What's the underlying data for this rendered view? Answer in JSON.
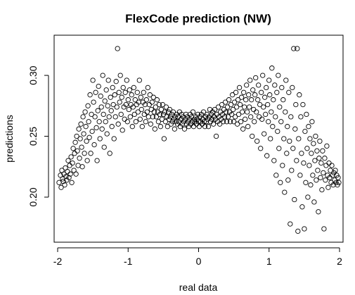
{
  "chart_data": {
    "type": "scatter",
    "title": "FlexCode prediction (NW)",
    "xlabel": "real data",
    "ylabel": "predictions",
    "xlim": [
      -2.05,
      2.05
    ],
    "ylim": [
      0.163,
      0.333
    ],
    "x_ticks": [
      -2,
      -1,
      0,
      1,
      2
    ],
    "x_tick_labels": [
      "-2",
      "-1",
      "0",
      "1",
      "2"
    ],
    "y_ticks": [
      0.2,
      0.25,
      0.3
    ],
    "y_tick_labels": [
      "0.20",
      "0.25",
      "0.30"
    ],
    "grid": false,
    "marker": "open-circle",
    "points": [
      [
        -1.98,
        0.212
      ],
      [
        -1.96,
        0.218
      ],
      [
        -1.95,
        0.208
      ],
      [
        -1.94,
        0.222
      ],
      [
        -1.93,
        0.215
      ],
      [
        -1.92,
        0.213
      ],
      [
        -1.91,
        0.219
      ],
      [
        -1.9,
        0.21
      ],
      [
        -1.89,
        0.224
      ],
      [
        -1.88,
        0.217
      ],
      [
        -1.87,
        0.214
      ],
      [
        -1.86,
        0.221
      ],
      [
        -1.85,
        0.23
      ],
      [
        -1.84,
        0.216
      ],
      [
        -1.83,
        0.226
      ],
      [
        -1.82,
        0.219
      ],
      [
        -1.81,
        0.233
      ],
      [
        -1.8,
        0.212
      ],
      [
        -1.79,
        0.228
      ],
      [
        -1.78,
        0.24
      ],
      [
        -1.77,
        0.222
      ],
      [
        -1.76,
        0.236
      ],
      [
        -1.75,
        0.245
      ],
      [
        -1.74,
        0.219
      ],
      [
        -1.73,
        0.25
      ],
      [
        -1.72,
        0.238
      ],
      [
        -1.71,
        0.226
      ],
      [
        -1.7,
        0.256
      ],
      [
        -1.69,
        0.232
      ],
      [
        -1.68,
        0.248
      ],
      [
        -1.67,
        0.26
      ],
      [
        -1.66,
        0.241
      ],
      [
        -1.65,
        0.225
      ],
      [
        -1.64,
        0.266
      ],
      [
        -1.63,
        0.252
      ],
      [
        -1.62,
        0.236
      ],
      [
        -1.61,
        0.27
      ],
      [
        -1.6,
        0.258
      ],
      [
        -1.59,
        0.246
      ],
      [
        -1.58,
        0.23
      ],
      [
        -1.57,
        0.275
      ],
      [
        -1.56,
        0.262
      ],
      [
        -1.55,
        0.249
      ],
      [
        -1.54,
        0.284
      ],
      [
        -1.53,
        0.236
      ],
      [
        -1.52,
        0.268
      ],
      [
        -1.51,
        0.254
      ],
      [
        -1.5,
        0.296
      ],
      [
        -1.49,
        0.278
      ],
      [
        -1.48,
        0.243
      ],
      [
        -1.47,
        0.266
      ],
      [
        -1.46,
        0.286
      ],
      [
        -1.45,
        0.257
      ],
      [
        -1.44,
        0.23
      ],
      [
        -1.43,
        0.271
      ],
      [
        -1.42,
        0.291
      ],
      [
        -1.41,
        0.262
      ],
      [
        -1.4,
        0.248
      ],
      [
        -1.39,
        0.283
      ],
      [
        -1.38,
        0.274
      ],
      [
        -1.37,
        0.256
      ],
      [
        -1.36,
        0.3
      ],
      [
        -1.35,
        0.268
      ],
      [
        -1.34,
        0.241
      ],
      [
        -1.33,
        0.279
      ],
      [
        -1.32,
        0.262
      ],
      [
        -1.31,
        0.288
      ],
      [
        -1.3,
        0.252
      ],
      [
        -1.29,
        0.275
      ],
      [
        -1.28,
        0.296
      ],
      [
        -1.27,
        0.266
      ],
      [
        -1.26,
        0.236
      ],
      [
        -1.25,
        0.282
      ],
      [
        -1.24,
        0.271
      ],
      [
        -1.23,
        0.258
      ],
      [
        -1.22,
        0.29
      ],
      [
        -1.21,
        0.276
      ],
      [
        -1.2,
        0.248
      ],
      [
        -1.19,
        0.284
      ],
      [
        -1.18,
        0.266
      ],
      [
        -1.17,
        0.295
      ],
      [
        -1.16,
        0.274
      ],
      [
        -1.15,
        0.322
      ],
      [
        -1.14,
        0.26
      ],
      [
        -1.13,
        0.286
      ],
      [
        -1.12,
        0.278
      ],
      [
        -1.11,
        0.3
      ],
      [
        -1.1,
        0.268
      ],
      [
        -1.09,
        0.282
      ],
      [
        -1.08,
        0.255
      ],
      [
        -1.07,
        0.29
      ],
      [
        -1.06,
        0.274
      ],
      [
        -1.05,
        0.264
      ],
      [
        -1.04,
        0.286
      ],
      [
        -1.03,
        0.276
      ],
      [
        -1.02,
        0.296
      ],
      [
        -1.01,
        0.262
      ],
      [
        -1.0,
        0.28
      ],
      [
        -0.99,
        0.272
      ],
      [
        -0.98,
        0.288
      ],
      [
        -0.97,
        0.266
      ],
      [
        -0.96,
        0.276
      ],
      [
        -0.95,
        0.284
      ],
      [
        -0.94,
        0.258
      ],
      [
        -0.93,
        0.274
      ],
      [
        -0.92,
        0.29
      ],
      [
        -0.91,
        0.268
      ],
      [
        -0.9,
        0.28
      ],
      [
        -0.89,
        0.262
      ],
      [
        -0.88,
        0.276
      ],
      [
        -0.87,
        0.286
      ],
      [
        -0.86,
        0.27
      ],
      [
        -0.85,
        0.278
      ],
      [
        -0.84,
        0.296
      ],
      [
        -0.83,
        0.264
      ],
      [
        -0.82,
        0.282
      ],
      [
        -0.81,
        0.272
      ],
      [
        -0.8,
        0.258
      ],
      [
        -0.79,
        0.278
      ],
      [
        -0.78,
        0.286
      ],
      [
        -0.77,
        0.268
      ],
      [
        -0.76,
        0.276
      ],
      [
        -0.75,
        0.262
      ],
      [
        -0.74,
        0.28
      ],
      [
        -0.73,
        0.27
      ],
      [
        -0.72,
        0.29
      ],
      [
        -0.71,
        0.266
      ],
      [
        -0.7,
        0.276
      ],
      [
        -0.69,
        0.284
      ],
      [
        -0.68,
        0.26
      ],
      [
        -0.67,
        0.272
      ],
      [
        -0.66,
        0.278
      ],
      [
        -0.65,
        0.266
      ],
      [
        -0.64,
        0.282
      ],
      [
        -0.63,
        0.27
      ],
      [
        -0.62,
        0.256
      ],
      [
        -0.61,
        0.274
      ],
      [
        -0.6,
        0.266
      ],
      [
        -0.59,
        0.28
      ],
      [
        -0.58,
        0.27
      ],
      [
        -0.57,
        0.262
      ],
      [
        -0.56,
        0.276
      ],
      [
        -0.55,
        0.268
      ],
      [
        -0.54,
        0.258
      ],
      [
        -0.53,
        0.272
      ],
      [
        -0.52,
        0.264
      ],
      [
        -0.51,
        0.276
      ],
      [
        -0.5,
        0.268
      ],
      [
        -0.49,
        0.248
      ],
      [
        -0.48,
        0.27
      ],
      [
        -0.47,
        0.262
      ],
      [
        -0.46,
        0.274
      ],
      [
        -0.45,
        0.266
      ],
      [
        -0.44,
        0.258
      ],
      [
        -0.43,
        0.27
      ],
      [
        -0.42,
        0.264
      ],
      [
        -0.41,
        0.272
      ],
      [
        -0.4,
        0.266
      ],
      [
        -0.39,
        0.26
      ],
      [
        -0.38,
        0.268
      ],
      [
        -0.37,
        0.262
      ],
      [
        -0.36,
        0.27
      ],
      [
        -0.35,
        0.264
      ],
      [
        -0.34,
        0.256
      ],
      [
        -0.33,
        0.266
      ],
      [
        -0.32,
        0.262
      ],
      [
        -0.31,
        0.268
      ],
      [
        -0.3,
        0.26
      ],
      [
        -0.29,
        0.266
      ],
      [
        -0.28,
        0.262
      ],
      [
        -0.27,
        0.27
      ],
      [
        -0.26,
        0.258
      ],
      [
        -0.25,
        0.264
      ],
      [
        -0.24,
        0.268
      ],
      [
        -0.23,
        0.26
      ],
      [
        -0.22,
        0.266
      ],
      [
        -0.21,
        0.262
      ],
      [
        -0.2,
        0.256
      ],
      [
        -0.19,
        0.264
      ],
      [
        -0.18,
        0.268
      ],
      [
        -0.17,
        0.26
      ],
      [
        -0.16,
        0.266
      ],
      [
        -0.15,
        0.262
      ],
      [
        -0.14,
        0.258
      ],
      [
        -0.13,
        0.264
      ],
      [
        -0.12,
        0.268
      ],
      [
        -0.11,
        0.26
      ],
      [
        -0.1,
        0.266
      ],
      [
        -0.09,
        0.262
      ],
      [
        -0.08,
        0.27
      ],
      [
        -0.07,
        0.258
      ],
      [
        -0.06,
        0.264
      ],
      [
        -0.05,
        0.262
      ],
      [
        -0.04,
        0.266
      ],
      [
        -0.03,
        0.26
      ],
      [
        -0.02,
        0.264
      ],
      [
        -0.01,
        0.268
      ],
      [
        0.0,
        0.262
      ],
      [
        0.01,
        0.258
      ],
      [
        0.02,
        0.266
      ],
      [
        0.03,
        0.262
      ],
      [
        0.04,
        0.268
      ],
      [
        0.05,
        0.26
      ],
      [
        0.06,
        0.264
      ],
      [
        0.07,
        0.27
      ],
      [
        0.08,
        0.262
      ],
      [
        0.09,
        0.258
      ],
      [
        0.1,
        0.266
      ],
      [
        0.11,
        0.262
      ],
      [
        0.12,
        0.268
      ],
      [
        0.13,
        0.264
      ],
      [
        0.14,
        0.258
      ],
      [
        0.15,
        0.266
      ],
      [
        0.16,
        0.272
      ],
      [
        0.17,
        0.262
      ],
      [
        0.18,
        0.268
      ],
      [
        0.19,
        0.264
      ],
      [
        0.2,
        0.27
      ],
      [
        0.21,
        0.26
      ],
      [
        0.22,
        0.266
      ],
      [
        0.23,
        0.272
      ],
      [
        0.24,
        0.264
      ],
      [
        0.25,
        0.25
      ],
      [
        0.26,
        0.268
      ],
      [
        0.27,
        0.262
      ],
      [
        0.28,
        0.274
      ],
      [
        0.29,
        0.266
      ],
      [
        0.3,
        0.26
      ],
      [
        0.31,
        0.27
      ],
      [
        0.32,
        0.264
      ],
      [
        0.33,
        0.276
      ],
      [
        0.34,
        0.268
      ],
      [
        0.35,
        0.262
      ],
      [
        0.36,
        0.272
      ],
      [
        0.37,
        0.266
      ],
      [
        0.38,
        0.278
      ],
      [
        0.39,
        0.27
      ],
      [
        0.4,
        0.262
      ],
      [
        0.41,
        0.274
      ],
      [
        0.42,
        0.266
      ],
      [
        0.43,
        0.28
      ],
      [
        0.44,
        0.27
      ],
      [
        0.45,
        0.262
      ],
      [
        0.46,
        0.276
      ],
      [
        0.47,
        0.268
      ],
      [
        0.48,
        0.284
      ],
      [
        0.49,
        0.272
      ],
      [
        0.5,
        0.262
      ],
      [
        0.51,
        0.278
      ],
      [
        0.52,
        0.266
      ],
      [
        0.53,
        0.286
      ],
      [
        0.54,
        0.274
      ],
      [
        0.55,
        0.26
      ],
      [
        0.56,
        0.28
      ],
      [
        0.57,
        0.268
      ],
      [
        0.58,
        0.29
      ],
      [
        0.59,
        0.276
      ],
      [
        0.6,
        0.262
      ],
      [
        0.61,
        0.282
      ],
      [
        0.62,
        0.27
      ],
      [
        0.63,
        0.256
      ],
      [
        0.64,
        0.286
      ],
      [
        0.65,
        0.274
      ],
      [
        0.66,
        0.264
      ],
      [
        0.67,
        0.28
      ],
      [
        0.68,
        0.292
      ],
      [
        0.69,
        0.27
      ],
      [
        0.7,
        0.258
      ],
      [
        0.71,
        0.284
      ],
      [
        0.72,
        0.274
      ],
      [
        0.73,
        0.296
      ],
      [
        0.74,
        0.266
      ],
      [
        0.75,
        0.28
      ],
      [
        0.76,
        0.25
      ],
      [
        0.77,
        0.288
      ],
      [
        0.78,
        0.272
      ],
      [
        0.79,
        0.262
      ],
      [
        0.8,
        0.284
      ],
      [
        0.81,
        0.298
      ],
      [
        0.82,
        0.27
      ],
      [
        0.83,
        0.246
      ],
      [
        0.84,
        0.28
      ],
      [
        0.85,
        0.292
      ],
      [
        0.86,
        0.266
      ],
      [
        0.87,
        0.276
      ],
      [
        0.88,
        0.24
      ],
      [
        0.89,
        0.286
      ],
      [
        0.9,
        0.264
      ],
      [
        0.91,
        0.3
      ],
      [
        0.92,
        0.274
      ],
      [
        0.93,
        0.252
      ],
      [
        0.94,
        0.282
      ],
      [
        0.95,
        0.268
      ],
      [
        0.96,
        0.29
      ],
      [
        0.97,
        0.234
      ],
      [
        0.98,
        0.276
      ],
      [
        0.99,
        0.262
      ],
      [
        1.0,
        0.296
      ],
      [
        1.01,
        0.284
      ],
      [
        1.02,
        0.248
      ],
      [
        1.03,
        0.27
      ],
      [
        1.04,
        0.306
      ],
      [
        1.05,
        0.258
      ],
      [
        1.06,
        0.28
      ],
      [
        1.07,
        0.23
      ],
      [
        1.08,
        0.292
      ],
      [
        1.09,
        0.266
      ],
      [
        1.1,
        0.218
      ],
      [
        1.11,
        0.286
      ],
      [
        1.12,
        0.254
      ],
      [
        1.13,
        0.3
      ],
      [
        1.14,
        0.24
      ],
      [
        1.15,
        0.274
      ],
      [
        1.16,
        0.212
      ],
      [
        1.17,
        0.262
      ],
      [
        1.18,
        0.29
      ],
      [
        1.19,
        0.226
      ],
      [
        1.2,
        0.28
      ],
      [
        1.21,
        0.248
      ],
      [
        1.22,
        0.204
      ],
      [
        1.23,
        0.27
      ],
      [
        1.24,
        0.296
      ],
      [
        1.25,
        0.236
      ],
      [
        1.26,
        0.258
      ],
      [
        1.27,
        0.214
      ],
      [
        1.28,
        0.286
      ],
      [
        1.29,
        0.246
      ],
      [
        1.3,
        0.178
      ],
      [
        1.31,
        0.266
      ],
      [
        1.32,
        0.222
      ],
      [
        1.33,
        0.29
      ],
      [
        1.34,
        0.24
      ],
      [
        1.35,
        0.322
      ],
      [
        1.36,
        0.198
      ],
      [
        1.37,
        0.256
      ],
      [
        1.38,
        0.276
      ],
      [
        1.39,
        0.23
      ],
      [
        1.4,
        0.322
      ],
      [
        1.41,
        0.172
      ],
      [
        1.42,
        0.248
      ],
      [
        1.43,
        0.284
      ],
      [
        1.44,
        0.218
      ],
      [
        1.45,
        0.266
      ],
      [
        1.46,
        0.236
      ],
      [
        1.47,
        0.192
      ],
      [
        1.48,
        0.276
      ],
      [
        1.49,
        0.228
      ],
      [
        1.5,
        0.174
      ],
      [
        1.51,
        0.254
      ],
      [
        1.52,
        0.212
      ],
      [
        1.53,
        0.268
      ],
      [
        1.54,
        0.24
      ],
      [
        1.55,
        0.2
      ],
      [
        1.56,
        0.258
      ],
      [
        1.57,
        0.226
      ],
      [
        1.58,
        0.248
      ],
      [
        1.59,
        0.21
      ],
      [
        1.6,
        0.236
      ],
      [
        1.61,
        0.262
      ],
      [
        1.62,
        0.218
      ],
      [
        1.63,
        0.244
      ],
      [
        1.64,
        0.196
      ],
      [
        1.65,
        0.23
      ],
      [
        1.66,
        0.25
      ],
      [
        1.67,
        0.214
      ],
      [
        1.68,
        0.238
      ],
      [
        1.69,
        0.222
      ],
      [
        1.7,
        0.188
      ],
      [
        1.71,
        0.232
      ],
      [
        1.72,
        0.246
      ],
      [
        1.73,
        0.216
      ],
      [
        1.74,
        0.228
      ],
      [
        1.75,
        0.206
      ],
      [
        1.76,
        0.238
      ],
      [
        1.77,
        0.22
      ],
      [
        1.78,
        0.174
      ],
      [
        1.79,
        0.232
      ],
      [
        1.8,
        0.214
      ],
      [
        1.81,
        0.226
      ],
      [
        1.82,
        0.242
      ],
      [
        1.83,
        0.218
      ],
      [
        1.84,
        0.208
      ],
      [
        1.85,
        0.228
      ],
      [
        1.86,
        0.216
      ],
      [
        1.87,
        0.222
      ],
      [
        1.88,
        0.212
      ],
      [
        1.89,
        0.226
      ],
      [
        1.9,
        0.218
      ],
      [
        1.91,
        0.21
      ],
      [
        1.92,
        0.22
      ],
      [
        1.93,
        0.214
      ],
      [
        1.94,
        0.222
      ],
      [
        1.95,
        0.212
      ],
      [
        1.96,
        0.218
      ],
      [
        1.97,
        0.21
      ],
      [
        1.98,
        0.216
      ],
      [
        1.99,
        0.212
      ]
    ]
  }
}
